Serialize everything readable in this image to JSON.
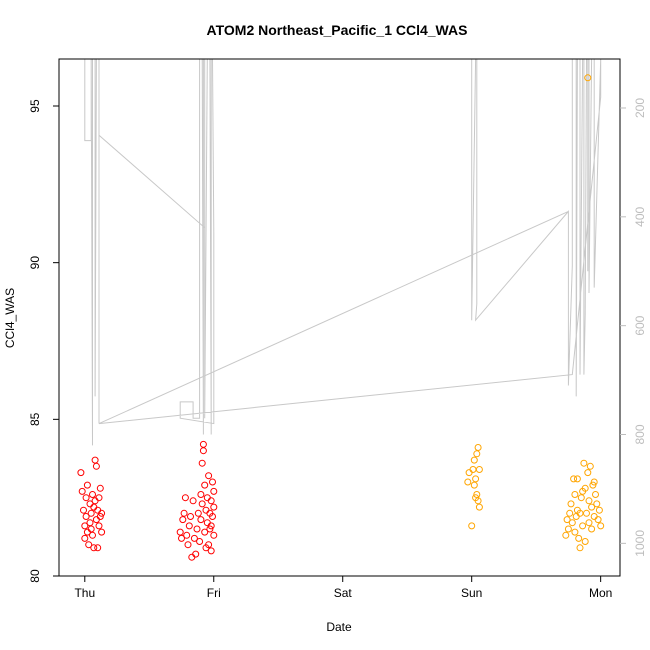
{
  "chart_data": {
    "type": "scatter",
    "title": "ATOM2 Northeast_Pacific_1 CCl4_WAS",
    "xlabel": "Date",
    "ylabel": "CCl4_WAS",
    "x_ticks": [
      "Thu",
      "Fri",
      "Sat",
      "Sun",
      "Mon"
    ],
    "xlim": [
      -0.2,
      4.15
    ],
    "ylim": [
      80,
      96.5
    ],
    "y_ticks": [
      80,
      85,
      90,
      95
    ],
    "y2_ticks": [
      200,
      400,
      600,
      800,
      1000
    ],
    "y2lim": [
      1060,
      110
    ],
    "y2_label": "",
    "grid": false,
    "colors": {
      "series_1": "#ff0000",
      "series_2": "#ffa500",
      "line": "#c8c8c8"
    },
    "series": [
      {
        "color": "#ff0000",
        "points": [
          [
            -0.03,
            83.3
          ],
          [
            -0.02,
            82.7
          ],
          [
            -0.01,
            82.1
          ],
          [
            0.0,
            81.6
          ],
          [
            0.0,
            81.2
          ],
          [
            0.01,
            81.9
          ],
          [
            0.01,
            82.5
          ],
          [
            0.02,
            81.4
          ],
          [
            0.02,
            82.9
          ],
          [
            0.03,
            81.0
          ],
          [
            0.04,
            81.7
          ],
          [
            0.04,
            82.3
          ],
          [
            0.05,
            81.5
          ],
          [
            0.05,
            82.0
          ],
          [
            0.06,
            81.3
          ],
          [
            0.06,
            82.6
          ],
          [
            0.07,
            82.2
          ],
          [
            0.07,
            80.9
          ],
          [
            0.08,
            83.7
          ],
          [
            0.08,
            82.4
          ],
          [
            0.09,
            81.8
          ],
          [
            0.09,
            83.5
          ],
          [
            0.1,
            82.1
          ],
          [
            0.1,
            80.9
          ],
          [
            0.11,
            81.6
          ],
          [
            0.11,
            82.5
          ],
          [
            0.12,
            82.8
          ],
          [
            0.12,
            81.9
          ],
          [
            0.13,
            82.0
          ],
          [
            0.13,
            81.4
          ],
          [
            0.74,
            81.4
          ],
          [
            0.75,
            81.2
          ],
          [
            0.76,
            81.8
          ],
          [
            0.77,
            82.0
          ],
          [
            0.78,
            82.5
          ],
          [
            0.79,
            81.3
          ],
          [
            0.8,
            81.0
          ],
          [
            0.81,
            81.6
          ],
          [
            0.82,
            81.9
          ],
          [
            0.83,
            80.6
          ],
          [
            0.84,
            82.4
          ],
          [
            0.85,
            81.2
          ],
          [
            0.86,
            80.7
          ],
          [
            0.87,
            81.5
          ],
          [
            0.88,
            82.0
          ],
          [
            0.89,
            81.1
          ],
          [
            0.9,
            82.6
          ],
          [
            0.9,
            81.8
          ],
          [
            0.91,
            83.6
          ],
          [
            0.91,
            82.3
          ],
          [
            0.92,
            84.2
          ],
          [
            0.92,
            84.0
          ],
          [
            0.93,
            81.4
          ],
          [
            0.93,
            82.9
          ],
          [
            0.94,
            82.1
          ],
          [
            0.94,
            80.9
          ],
          [
            0.95,
            81.7
          ],
          [
            0.95,
            82.5
          ],
          [
            0.96,
            83.2
          ],
          [
            0.96,
            81.0
          ],
          [
            0.97,
            82.0
          ],
          [
            0.97,
            81.5
          ],
          [
            0.98,
            82.4
          ],
          [
            0.98,
            80.8
          ],
          [
            0.99,
            83.0
          ],
          [
            0.99,
            81.9
          ],
          [
            1.0,
            82.2
          ],
          [
            1.0,
            81.3
          ],
          [
            1.0,
            82.7
          ],
          [
            0.98,
            81.6
          ]
        ]
      },
      {
        "color": "#ffa500",
        "points": [
          [
            3.0,
            81.6
          ],
          [
            3.01,
            83.4
          ],
          [
            3.02,
            82.9
          ],
          [
            3.03,
            83.1
          ],
          [
            3.04,
            82.6
          ],
          [
            3.04,
            83.9
          ],
          [
            3.05,
            82.4
          ],
          [
            3.05,
            84.1
          ],
          [
            3.06,
            83.4
          ],
          [
            3.06,
            82.2
          ],
          [
            2.97,
            83.0
          ],
          [
            2.98,
            83.3
          ],
          [
            3.02,
            83.7
          ],
          [
            3.03,
            82.5
          ],
          [
            3.73,
            81.3
          ],
          [
            3.74,
            81.8
          ],
          [
            3.75,
            81.5
          ],
          [
            3.76,
            82.0
          ],
          [
            3.77,
            82.3
          ],
          [
            3.78,
            81.7
          ],
          [
            3.79,
            83.1
          ],
          [
            3.8,
            82.6
          ],
          [
            3.8,
            81.4
          ],
          [
            3.81,
            81.9
          ],
          [
            3.82,
            83.1
          ],
          [
            3.82,
            82.1
          ],
          [
            3.83,
            81.2
          ],
          [
            3.84,
            80.9
          ],
          [
            3.85,
            82.5
          ],
          [
            3.86,
            81.6
          ],
          [
            3.87,
            83.6
          ],
          [
            3.88,
            82.8
          ],
          [
            3.88,
            81.1
          ],
          [
            3.89,
            82.0
          ],
          [
            3.9,
            95.9
          ],
          [
            3.9,
            83.3
          ],
          [
            3.91,
            82.4
          ],
          [
            3.91,
            81.7
          ],
          [
            3.92,
            83.5
          ],
          [
            3.93,
            82.2
          ],
          [
            3.93,
            81.5
          ],
          [
            3.94,
            82.9
          ],
          [
            3.95,
            83.0
          ],
          [
            3.95,
            81.9
          ],
          [
            3.96,
            82.6
          ],
          [
            3.97,
            82.3
          ],
          [
            3.98,
            81.8
          ],
          [
            3.99,
            82.1
          ],
          [
            4.0,
            81.6
          ],
          [
            3.86,
            82.7
          ],
          [
            3.84,
            82.0
          ]
        ]
      }
    ],
    "altitude_line": [
      [
        0.0,
        110
      ],
      [
        0.0,
        260
      ],
      [
        0.05,
        260
      ],
      [
        0.05,
        110
      ],
      [
        0.06,
        820
      ],
      [
        0.06,
        110
      ],
      [
        0.08,
        110
      ],
      [
        0.08,
        730
      ],
      [
        0.09,
        110
      ],
      [
        0.11,
        110
      ],
      [
        0.11,
        780
      ],
      [
        0.11,
        250
      ],
      [
        0.93,
        420
      ],
      [
        0.93,
        110
      ],
      [
        0.93,
        770
      ],
      [
        0.95,
        110
      ],
      [
        0.97,
        110
      ],
      [
        0.98,
        800
      ],
      [
        0.98,
        110
      ],
      [
        0.99,
        110
      ],
      [
        1.0,
        430
      ],
      [
        1.0,
        780
      ],
      [
        0.74,
        770
      ],
      [
        0.74,
        740
      ],
      [
        0.75,
        740
      ],
      [
        0.84,
        740
      ],
      [
        0.84,
        770
      ],
      [
        0.86,
        770
      ],
      [
        0.89,
        770
      ],
      [
        0.89,
        110
      ],
      [
        0.91,
        110
      ],
      [
        0.91,
        110
      ],
      [
        0.92,
        800
      ],
      [
        0.92,
        110
      ],
      [
        3.0,
        110
      ],
      [
        3.0,
        590
      ],
      [
        3.03,
        110
      ],
      [
        3.04,
        110
      ],
      [
        3.04,
        350
      ],
      [
        3.04,
        540
      ],
      [
        3.04,
        560
      ],
      [
        3.03,
        590
      ],
      [
        3.03,
        590
      ],
      [
        3.75,
        390
      ],
      [
        3.75,
        710
      ],
      [
        3.78,
        490
      ],
      [
        3.78,
        110
      ],
      [
        3.79,
        110
      ],
      [
        3.8,
        110
      ],
      [
        3.81,
        110
      ],
      [
        3.81,
        730
      ],
      [
        3.82,
        110
      ],
      [
        3.84,
        110
      ],
      [
        3.84,
        690
      ],
      [
        3.86,
        110
      ],
      [
        3.87,
        110
      ],
      [
        3.87,
        690
      ],
      [
        3.88,
        580
      ],
      [
        3.89,
        110
      ],
      [
        3.9,
        110
      ],
      [
        3.9,
        500
      ],
      [
        3.9,
        110
      ],
      [
        3.91,
        110
      ],
      [
        3.91,
        540
      ],
      [
        3.93,
        110
      ],
      [
        3.94,
        110
      ],
      [
        3.95,
        110
      ],
      [
        3.95,
        530
      ],
      [
        4.0,
        110
      ],
      [
        4.0,
        180
      ],
      [
        3.78,
        690
      ],
      [
        0.11,
        780
      ],
      [
        3.75,
        390
      ]
    ]
  }
}
